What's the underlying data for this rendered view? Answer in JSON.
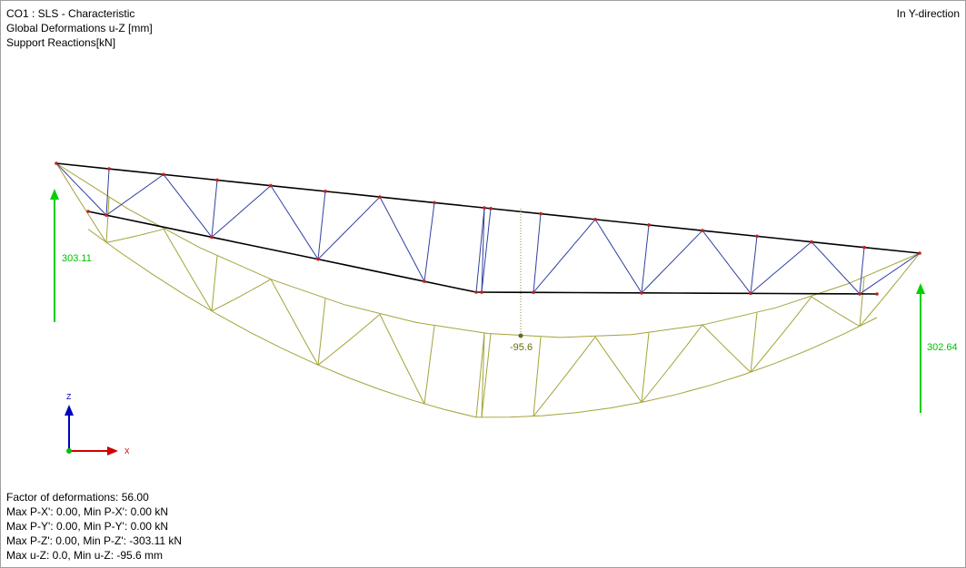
{
  "header": {
    "lines": [
      "CO1 : SLS - Characteristic",
      "Global Deformations u-Z [mm]",
      "Support Reactions[kN]"
    ],
    "direction": "In Y-direction"
  },
  "reactions": {
    "left": "303.11",
    "right": "302.64"
  },
  "max_deformation_label": "-95.6",
  "axes": {
    "z": "Z",
    "x": "X"
  },
  "footer": {
    "lines": [
      "Factor of deformations: 56.00",
      "Max P-X': 0.00, Min P-X': 0.00 kN",
      "Max P-Y': 0.00, Min P-Y': 0.00 kN",
      "Max P-Z': 0.00, Min P-Z': -303.11 kN",
      "Max u-Z: 0.0, Min u-Z: -95.6 mm"
    ]
  }
}
